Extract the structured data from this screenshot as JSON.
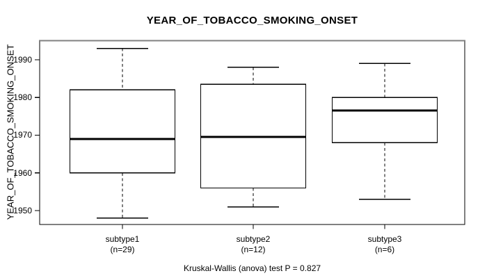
{
  "title": "YEAR_OF_TOBACCO_SMOKING_ONSET",
  "y_axis": {
    "label": "YEAR_OF_TOBACCO_SMOKING_ONSET",
    "ticks": [
      "1950",
      "1960",
      "1970",
      "1980",
      "1990"
    ]
  },
  "footer": "Kruskal-Wallis (anova) test P = 0.827",
  "chart_data": {
    "type": "boxplot",
    "title": "YEAR_OF_TOBACCO_SMOKING_ONSET",
    "ylabel": "YEAR_OF_TOBACCO_SMOKING_ONSET",
    "xlabel": "",
    "ylim": [
      1946,
      1995
    ],
    "yticks": [
      1950,
      1960,
      1970,
      1980,
      1990
    ],
    "grid": false,
    "annotation": "Kruskal-Wallis (anova) test P = 0.827",
    "groups": [
      {
        "label": "subtype1",
        "n_label": "(n=29)",
        "n": 29,
        "whisker_low": 1948,
        "q1": 1960,
        "median": 1969,
        "q3": 1982,
        "whisker_high": 1993
      },
      {
        "label": "subtype2",
        "n_label": "(n=12)",
        "n": 12,
        "whisker_low": 1951,
        "q1": 1956,
        "median": 1969.5,
        "q3": 1983.5,
        "whisker_high": 1988
      },
      {
        "label": "subtype3",
        "n_label": "(n=6)",
        "n": 6,
        "whisker_low": 1953,
        "q1": 1968,
        "median": 1976.5,
        "q3": 1980,
        "whisker_high": 1989
      }
    ],
    "colors": {
      "line": "#000000",
      "median": "#000000",
      "box_fill": "#ffffff",
      "frame_top": "#808080",
      "background": "#ffffff"
    }
  }
}
